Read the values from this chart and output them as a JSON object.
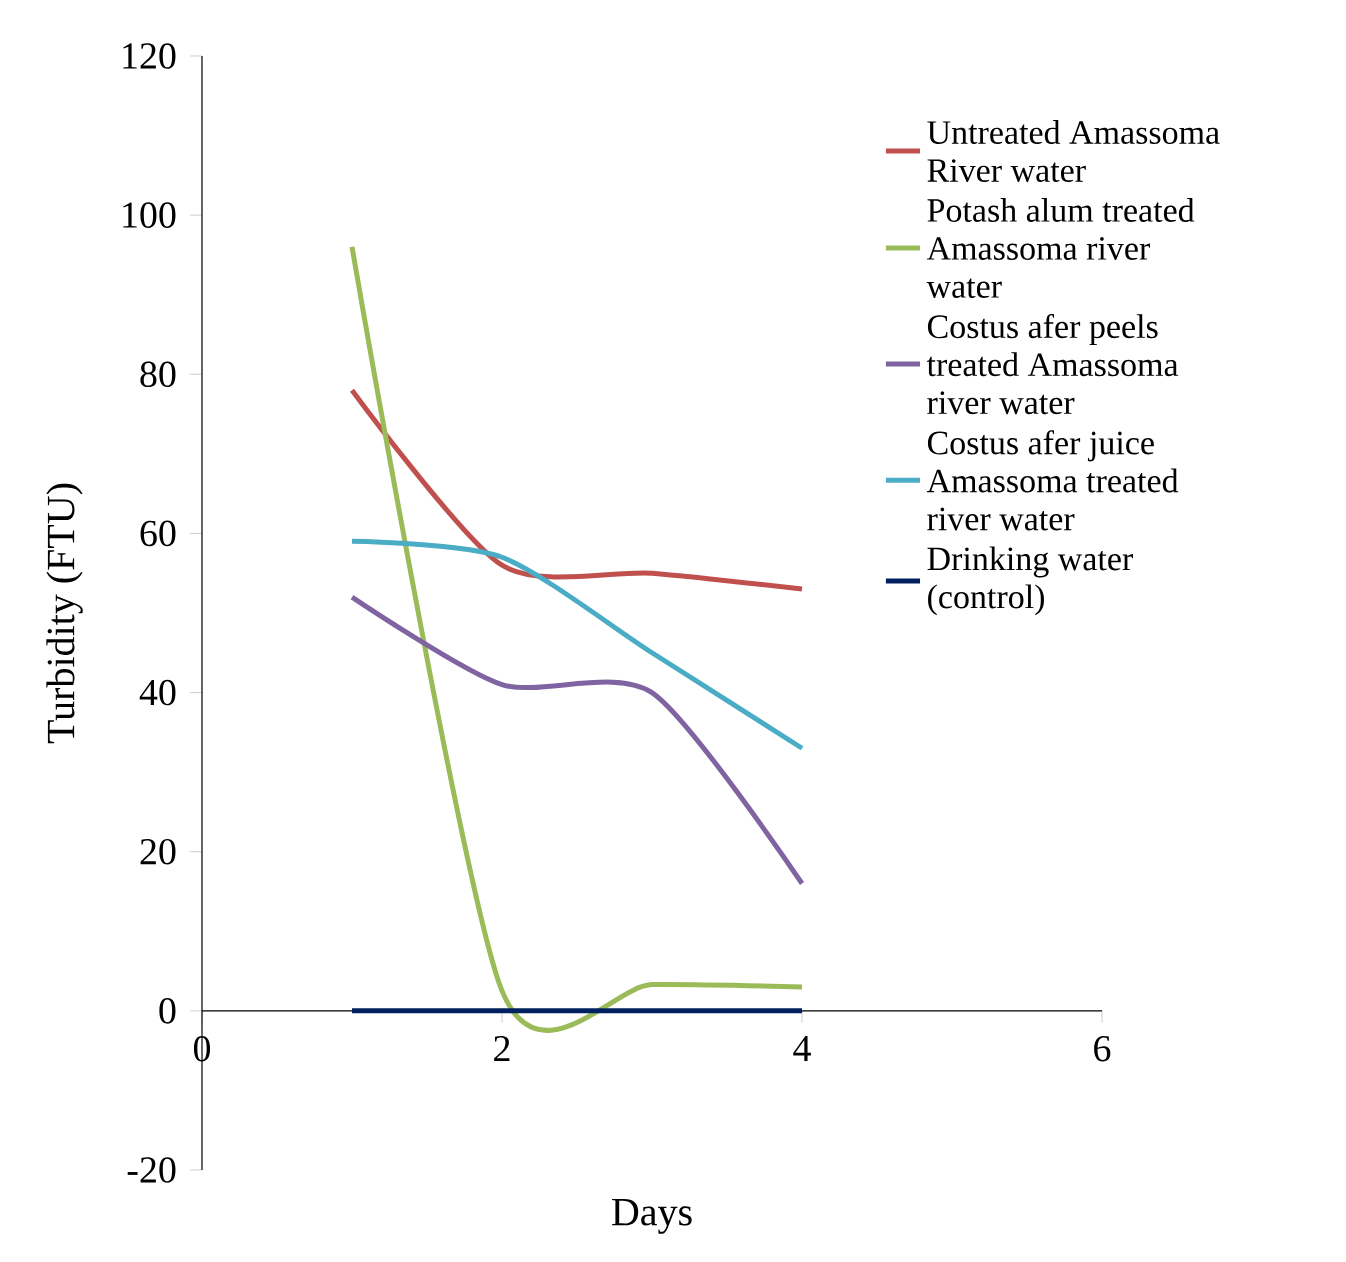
{
  "chart_data": {
    "type": "line",
    "xlabel": "Days",
    "ylabel": "Turbidity (FTU)",
    "x": [
      1,
      2,
      3,
      4
    ],
    "series": [
      {
        "name": "Untreated Amassoma River water",
        "color": "#c0504d",
        "values": [
          78,
          56,
          55,
          53
        ]
      },
      {
        "name": "Potash alum treated Amassoma river water",
        "color": "#9bbb59",
        "values": [
          96,
          2.5,
          3.3,
          3
        ]
      },
      {
        "name": "Costus afer peels treated Amassoma river water",
        "color": "#8064a2",
        "values": [
          52,
          41,
          40,
          16
        ]
      },
      {
        "name": "Costus afer juice Amassoma treated river water",
        "color": "#4bacc6",
        "values": [
          59,
          57,
          45,
          33
        ]
      },
      {
        "name": "Drinking water (control)",
        "color": "#002060",
        "values": [
          0,
          0,
          0,
          0
        ]
      }
    ],
    "xlim": [
      0,
      6
    ],
    "xticks": [
      0,
      2,
      4,
      6
    ],
    "ylim": [
      -20,
      120
    ],
    "yticks": [
      -20,
      0,
      20,
      40,
      60,
      80,
      100,
      120
    ],
    "grid": false,
    "legend": "right",
    "marker": "none",
    "line_style": "solid"
  }
}
